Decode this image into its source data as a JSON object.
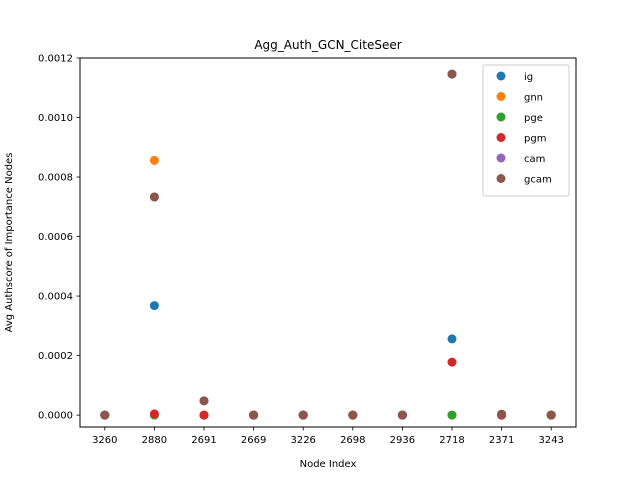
{
  "chart_data": {
    "type": "scatter",
    "title": "Agg_Auth_GCN_CiteSeer",
    "xlabel": "Node Index",
    "ylabel": "Avg Authscore of Importance Nodes",
    "categories": [
      "3260",
      "2880",
      "2691",
      "2669",
      "3226",
      "2698",
      "2936",
      "2718",
      "2371",
      "3243"
    ],
    "ylim": [
      -4e-05,
      0.0012
    ],
    "yticks": [
      0.0,
      0.0002,
      0.0004,
      0.0006,
      0.0008,
      0.001,
      0.0012
    ],
    "ytick_labels": [
      "0.0000",
      "0.0002",
      "0.0004",
      "0.0006",
      "0.0008",
      "0.0010",
      "0.0012"
    ],
    "grid": false,
    "legend_position": "top-right",
    "series": [
      {
        "name": "ig",
        "color": "#1f77b4",
        "values": [
          0.0,
          0.000368,
          0.0,
          0.0,
          0.0,
          0.0,
          0.0,
          0.000256,
          0.0,
          0.0
        ]
      },
      {
        "name": "gnn",
        "color": "#ff7f0e",
        "values": [
          0.0,
          0.000856,
          0.0,
          0.0,
          0.0,
          0.0,
          0.0,
          0.0,
          0.0,
          0.0
        ]
      },
      {
        "name": "pge",
        "color": "#2ca02c",
        "values": [
          0.0,
          0.0,
          0.0,
          0.0,
          0.0,
          0.0,
          0.0,
          0.0,
          0.0,
          0.0
        ]
      },
      {
        "name": "pgm",
        "color": "#d62728",
        "values": [
          0.0,
          4e-06,
          0.0,
          0.0,
          0.0,
          0.0,
          0.0,
          0.000178,
          0.0,
          0.0
        ]
      },
      {
        "name": "cam",
        "color": "#9467bd",
        "values": [
          0.0,
          0.000733,
          4.8e-05,
          0.0,
          0.0,
          0.0,
          0.0,
          0.001146,
          3e-06,
          0.0
        ]
      },
      {
        "name": "gcam",
        "color": "#8c564b",
        "values": [
          0.0,
          0.000733,
          4.8e-05,
          0.0,
          0.0,
          0.0,
          0.0,
          0.001146,
          3e-06,
          0.0
        ]
      }
    ]
  }
}
